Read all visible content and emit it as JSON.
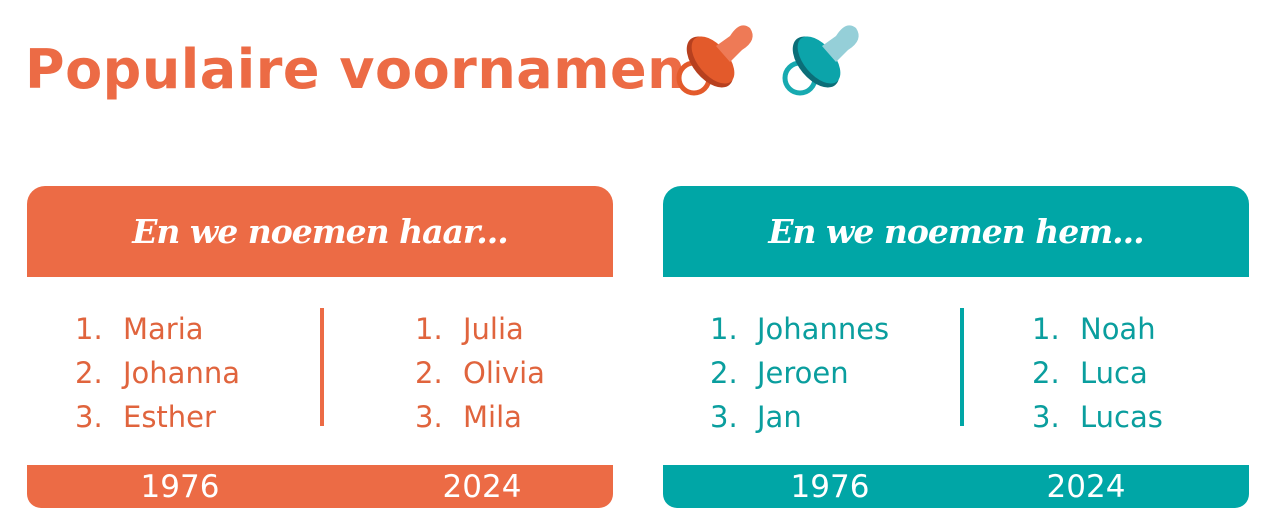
{
  "title": "Populaire voornamen",
  "colors": {
    "girls": "#EC6B45",
    "boys": "#00A6A6"
  },
  "icons": [
    "pacifier-orange-icon",
    "pacifier-teal-icon"
  ],
  "girls": {
    "heading": "En we noemen haar...",
    "columns": [
      {
        "year": "1976",
        "names": [
          {
            "rank": "1.",
            "name": "Maria"
          },
          {
            "rank": "2.",
            "name": "Johanna"
          },
          {
            "rank": "3.",
            "name": "Esther"
          }
        ]
      },
      {
        "year": "2024",
        "names": [
          {
            "rank": "1.",
            "name": "Julia"
          },
          {
            "rank": "2.",
            "name": "Olivia"
          },
          {
            "rank": "3.",
            "name": "Mila"
          }
        ]
      }
    ]
  },
  "boys": {
    "heading": "En we noemen hem...",
    "columns": [
      {
        "year": "1976",
        "names": [
          {
            "rank": "1.",
            "name": "Johannes"
          },
          {
            "rank": "2.",
            "name": "Jeroen"
          },
          {
            "rank": "3.",
            "name": "Jan"
          }
        ]
      },
      {
        "year": "2024",
        "names": [
          {
            "rank": "1.",
            "name": "Noah"
          },
          {
            "rank": "2.",
            "name": "Luca"
          },
          {
            "rank": "3.",
            "name": "Lucas"
          }
        ]
      }
    ]
  }
}
